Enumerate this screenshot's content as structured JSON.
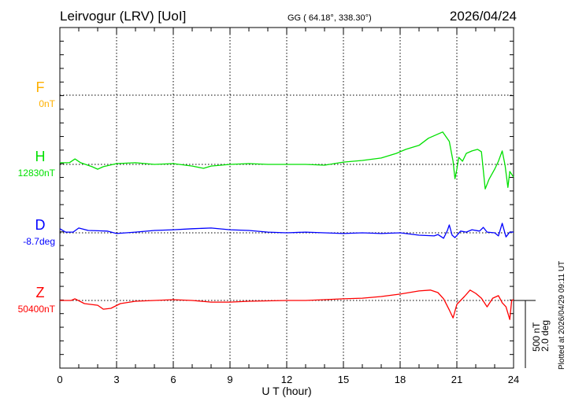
{
  "header": {
    "station": "Leirvogur (LRV)  [UoI]",
    "coords": "GG ( 64.18°, 338.30°)",
    "date": "2026/04/24"
  },
  "footer": {
    "plotted": "Plotted at 2026/04/29 09:11 UT",
    "scale_nt": "500 nT",
    "scale_deg": "2.0 deg"
  },
  "chart_data": {
    "type": "line",
    "xlabel": "U T (hour)",
    "xlim": [
      0,
      24
    ],
    "xticks": [
      "0",
      "3",
      "6",
      "9",
      "12",
      "15",
      "18",
      "21",
      "24"
    ],
    "scale": {
      "nT_per_division": 500,
      "deg_per_division": 2.0
    },
    "colors": {
      "F": "#ffb000",
      "H": "#00e000",
      "D": "#0000ff",
      "Z": "#ff0000"
    },
    "series": [
      {
        "name": "F",
        "label": "F",
        "baseline": "0nT",
        "unit": "nT",
        "x": [],
        "values": []
      },
      {
        "name": "H",
        "label": "H",
        "baseline": "12830nT",
        "unit": "nT",
        "x": [
          0,
          0.5,
          0.8,
          1.1,
          1.7,
          2,
          2.3,
          3,
          4,
          5,
          6,
          7,
          7.6,
          8,
          9,
          10,
          11,
          12,
          13,
          14,
          15,
          16,
          17,
          17.8,
          18.3,
          19,
          19.5,
          20.25,
          20.6,
          20.8,
          20.9,
          21.0,
          21.1,
          21.3,
          21.5,
          21.8,
          22.1,
          22.3,
          22.5,
          22.7,
          23.0,
          23.2,
          23.4,
          23.55,
          23.7,
          23.8,
          24
        ],
        "values": [
          12,
          12,
          40,
          12,
          -17,
          -35,
          -17,
          6,
          12,
          0,
          6,
          -12,
          -29,
          -12,
          0,
          6,
          0,
          0,
          0,
          -6,
          17,
          29,
          47,
          81,
          110,
          140,
          192,
          238,
          169,
          23,
          -105,
          -35,
          52,
          23,
          81,
          99,
          110,
          93,
          -180,
          -110,
          -35,
          23,
          99,
          -6,
          -169,
          -52,
          -93
        ]
      },
      {
        "name": "D",
        "label": "D",
        "baseline": "-8.7deg",
        "unit": "deg",
        "x": [
          0,
          0.3,
          0.7,
          1,
          1.5,
          2.5,
          3,
          4,
          5,
          6,
          7,
          8,
          9,
          10,
          11,
          12,
          13,
          14,
          15,
          16,
          17,
          18,
          19,
          19.8,
          20,
          20.3,
          20.5,
          20.6,
          20.75,
          20.9,
          21.2,
          21.5,
          21.8,
          22.2,
          22.4,
          22.6,
          23,
          23.2,
          23.4,
          23.6,
          23.8,
          24
        ],
        "values": [
          0.12,
          0.02,
          0.02,
          0.14,
          0.07,
          0.05,
          -0.02,
          0.02,
          0.07,
          0.09,
          0.12,
          0.14,
          0.09,
          0.07,
          0.02,
          0,
          0.02,
          0,
          -0.02,
          0,
          -0.02,
          0,
          -0.07,
          -0.09,
          -0.05,
          -0.16,
          0.07,
          0.23,
          -0.07,
          -0.14,
          0.05,
          0.02,
          0.09,
          0.05,
          0.16,
          0.02,
          0,
          -0.09,
          0.28,
          -0.12,
          0.02,
          0.02
        ]
      },
      {
        "name": "Z",
        "label": "Z",
        "baseline": "50400nT",
        "unit": "nT",
        "x": [
          0,
          0.6,
          0.8,
          1.3,
          2,
          2.3,
          2.7,
          3.2,
          4,
          5,
          6,
          7,
          8,
          9,
          10,
          12,
          13,
          14,
          15,
          16,
          17,
          18,
          19,
          19.6,
          20,
          20.3,
          20.6,
          20.8,
          21,
          21.2,
          21.4,
          21.7,
          22,
          22.3,
          22.6,
          22.9,
          23.2,
          23.4,
          23.6,
          23.8,
          23.9,
          24
        ],
        "values": [
          0,
          0,
          12,
          -23,
          -35,
          -64,
          -58,
          -23,
          -6,
          0,
          6,
          0,
          -12,
          -12,
          -6,
          0,
          0,
          6,
          12,
          17,
          29,
          47,
          70,
          76,
          58,
          12,
          -70,
          -128,
          -29,
          0,
          29,
          76,
          52,
          17,
          -47,
          17,
          35,
          -17,
          -47,
          -140,
          0,
          6
        ]
      }
    ]
  }
}
